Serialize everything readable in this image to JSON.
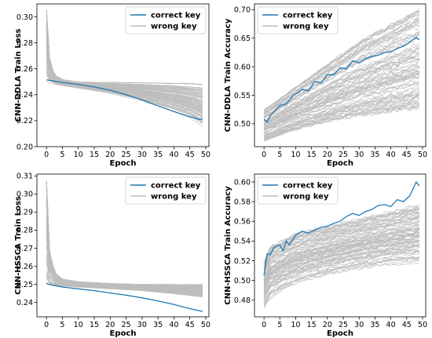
{
  "chart_data": [
    {
      "type": "line",
      "xlabel": "Epoch",
      "ylabel": "CNN-DDLA Train Loss",
      "xlim": [
        -3,
        51
      ],
      "ylim": [
        0.2,
        0.31
      ],
      "xticks": [
        0,
        5,
        10,
        15,
        20,
        25,
        30,
        35,
        40,
        45,
        50
      ],
      "yticks": [
        0.2,
        0.22,
        0.24,
        0.26,
        0.28,
        0.3
      ],
      "ytick_labels": [
        "0.20",
        "0.22",
        "0.24",
        "0.26",
        "0.28",
        "0.30"
      ],
      "legend": "top-right",
      "grid": false,
      "series": [
        {
          "name": "correct key",
          "color": "#1f77b4",
          "x": [
            0,
            5,
            10,
            15,
            20,
            25,
            30,
            35,
            40,
            45,
            48,
            49
          ],
          "y": [
            0.2515,
            0.2495,
            0.248,
            0.246,
            0.2435,
            0.24,
            0.236,
            0.2315,
            0.227,
            0.223,
            0.221,
            0.2215
          ]
        },
        {
          "name": "wrong key",
          "color": "#bdbdbd",
          "count": 255,
          "envelope_upper": {
            "x": [
              0,
              1,
              2,
              3,
              5,
              10,
              20,
              30,
              40,
              49
            ],
            "y": [
              0.305,
              0.27,
              0.26,
              0.255,
              0.252,
              0.25,
              0.25,
              0.25,
              0.25,
              0.25
            ]
          },
          "envelope_lower": {
            "x": [
              0,
              5,
              10,
              20,
              30,
              40,
              45,
              49
            ],
            "y": [
              0.249,
              0.247,
              0.245,
              0.241,
              0.235,
              0.227,
              0.222,
              0.215
            ]
          }
        }
      ]
    },
    {
      "type": "line",
      "xlabel": "Epoch",
      "ylabel": "CNN-DDLA Train Accuracy",
      "xlim": [
        -3,
        51
      ],
      "ylim": [
        0.46,
        0.71
      ],
      "xticks": [
        0,
        5,
        10,
        15,
        20,
        25,
        30,
        35,
        40,
        45,
        50
      ],
      "yticks": [
        0.5,
        0.55,
        0.6,
        0.65,
        0.7
      ],
      "ytick_labels": [
        "0.50",
        "0.55",
        "0.60",
        "0.65",
        "0.70"
      ],
      "legend": "top-left",
      "grid": false,
      "series": [
        {
          "name": "correct key",
          "color": "#1f77b4",
          "x": [
            0,
            1,
            2,
            3,
            5,
            7,
            9,
            10,
            12,
            14,
            16,
            18,
            20,
            22,
            24,
            26,
            28,
            30,
            32,
            34,
            36,
            38,
            40,
            42,
            44,
            46,
            47,
            48,
            49
          ],
          "y": [
            0.508,
            0.503,
            0.515,
            0.52,
            0.532,
            0.535,
            0.548,
            0.552,
            0.56,
            0.558,
            0.574,
            0.572,
            0.586,
            0.586,
            0.598,
            0.596,
            0.61,
            0.607,
            0.614,
            0.618,
            0.62,
            0.625,
            0.626,
            0.632,
            0.636,
            0.643,
            0.648,
            0.651,
            0.647
          ]
        },
        {
          "name": "wrong key",
          "color": "#bdbdbd",
          "count": 255,
          "envelope_upper": {
            "x": [
              0,
              5,
              10,
              20,
              30,
              40,
              49
            ],
            "y": [
              0.525,
              0.545,
              0.565,
              0.605,
              0.645,
              0.675,
              0.702
            ]
          },
          "envelope_lower": {
            "x": [
              0,
              5,
              10,
              20,
              30,
              40,
              49
            ],
            "y": [
              0.47,
              0.48,
              0.49,
              0.505,
              0.515,
              0.522,
              0.528
            ]
          }
        }
      ]
    },
    {
      "type": "line",
      "xlabel": "Epoch",
      "ylabel": "CNN-HSSCA Train Loss",
      "xlim": [
        -3,
        51
      ],
      "ylim": [
        0.232,
        0.311
      ],
      "xticks": [
        0,
        5,
        10,
        15,
        20,
        25,
        30,
        35,
        40,
        45,
        50
      ],
      "yticks": [
        0.24,
        0.25,
        0.26,
        0.27,
        0.28,
        0.29,
        0.3,
        0.31
      ],
      "ytick_labels": [
        "0.24",
        "0.25",
        "0.26",
        "0.27",
        "0.28",
        "0.29",
        "0.30",
        "0.31"
      ],
      "legend": "top-right",
      "grid": false,
      "series": [
        {
          "name": "correct key",
          "color": "#1f77b4",
          "x": [
            0,
            2,
            5,
            10,
            15,
            20,
            25,
            30,
            35,
            40,
            45,
            49
          ],
          "y": [
            0.2505,
            0.2495,
            0.2485,
            0.2475,
            0.2465,
            0.2452,
            0.244,
            0.2425,
            0.2408,
            0.2388,
            0.2365,
            0.235
          ]
        },
        {
          "name": "wrong key",
          "color": "#bdbdbd",
          "count": 255,
          "envelope_upper": {
            "x": [
              0,
              1,
              2,
              3,
              5,
              10,
              20,
              30,
              40,
              49
            ],
            "y": [
              0.307,
              0.27,
              0.262,
              0.256,
              0.253,
              0.2515,
              0.2505,
              0.25,
              0.25,
              0.25
            ]
          },
          "envelope_lower": {
            "x": [
              0,
              5,
              10,
              20,
              30,
              40,
              49
            ],
            "y": [
              0.2495,
              0.249,
              0.2485,
              0.2475,
              0.2465,
              0.2448,
              0.243
            ]
          }
        }
      ]
    },
    {
      "type": "line",
      "xlabel": "Epoch",
      "ylabel": "CNN-HSSCA Train Accuracy",
      "xlim": [
        -3,
        51
      ],
      "ylim": [
        0.463,
        0.608
      ],
      "xticks": [
        0,
        5,
        10,
        15,
        20,
        25,
        30,
        35,
        40,
        45,
        50
      ],
      "yticks": [
        0.48,
        0.5,
        0.52,
        0.54,
        0.56,
        0.58,
        0.6
      ],
      "ytick_labels": [
        "0.48",
        "0.50",
        "0.52",
        "0.54",
        "0.56",
        "0.58",
        "0.60"
      ],
      "legend": "top-left",
      "grid": false,
      "series": [
        {
          "name": "correct key",
          "color": "#1f77b4",
          "x": [
            0,
            1,
            2,
            3,
            4,
            5,
            6,
            7,
            8,
            10,
            12,
            14,
            16,
            18,
            20,
            22,
            24,
            26,
            28,
            30,
            32,
            34,
            36,
            38,
            40,
            42,
            44,
            46,
            48,
            49
          ],
          "y": [
            0.505,
            0.527,
            0.526,
            0.533,
            0.535,
            0.536,
            0.53,
            0.54,
            0.536,
            0.546,
            0.55,
            0.548,
            0.551,
            0.554,
            0.555,
            0.558,
            0.56,
            0.565,
            0.568,
            0.566,
            0.57,
            0.572,
            0.576,
            0.577,
            0.575,
            0.582,
            0.58,
            0.586,
            0.6,
            0.596
          ]
        },
        {
          "name": "wrong key",
          "color": "#bdbdbd",
          "count": 255,
          "envelope_upper": {
            "x": [
              0,
              2,
              5,
              10,
              20,
              30,
              40,
              49
            ],
            "y": [
              0.52,
              0.535,
              0.54,
              0.548,
              0.555,
              0.563,
              0.57,
              0.577
            ]
          },
          "envelope_lower": {
            "x": [
              0,
              2,
              5,
              10,
              20,
              30,
              40,
              49
            ],
            "y": [
              0.468,
              0.478,
              0.485,
              0.493,
              0.502,
              0.508,
              0.512,
              0.514
            ]
          }
        }
      ]
    }
  ]
}
